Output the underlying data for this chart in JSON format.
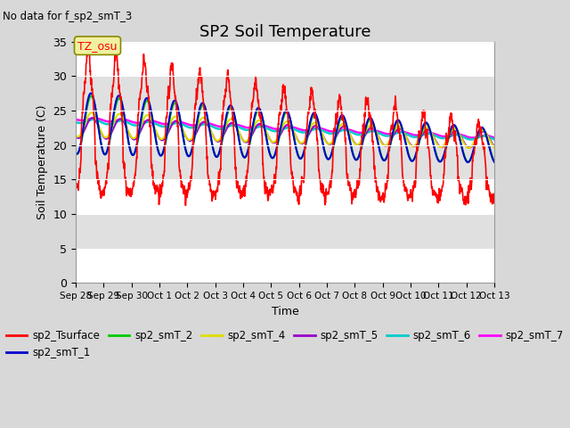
{
  "title": "SP2 Soil Temperature",
  "subtitle": "No data for f_sp2_smT_3",
  "ylabel": "Soil Temperature (C)",
  "xlabel": "Time",
  "tz_label": "TZ_osu",
  "ylim": [
    0,
    35
  ],
  "background_color": "#d8d8d8",
  "plot_background": "#ffffff",
  "band_colors": [
    "#ffffff",
    "#e0e0e0"
  ],
  "legend_entries": [
    {
      "label": "sp2_Tsurface",
      "color": "#ff0000",
      "lw": 1.2
    },
    {
      "label": "sp2_smT_1",
      "color": "#0000cc",
      "lw": 1.5
    },
    {
      "label": "sp2_smT_2",
      "color": "#00cc00",
      "lw": 1.5
    },
    {
      "label": "sp2_smT_4",
      "color": "#dddd00",
      "lw": 1.5
    },
    {
      "label": "sp2_smT_5",
      "color": "#9900cc",
      "lw": 1.5
    },
    {
      "label": "sp2_smT_6",
      "color": "#00cccc",
      "lw": 1.8
    },
    {
      "label": "sp2_smT_7",
      "color": "#ff00ff",
      "lw": 1.8
    }
  ],
  "xtick_labels": [
    "Sep 28",
    "Sep 29",
    "Sep 30",
    "Oct 1",
    "Oct 2",
    "Oct 3",
    "Oct 4",
    "Oct 5",
    "Oct 6",
    "Oct 7",
    "Oct 8",
    "Oct 9",
    "Oct 10",
    "Oct 11",
    "Oct 12",
    "Oct 13"
  ],
  "ytick_values": [
    0,
    5,
    10,
    15,
    20,
    25,
    30,
    35
  ],
  "num_days": 15,
  "points_per_day": 144
}
